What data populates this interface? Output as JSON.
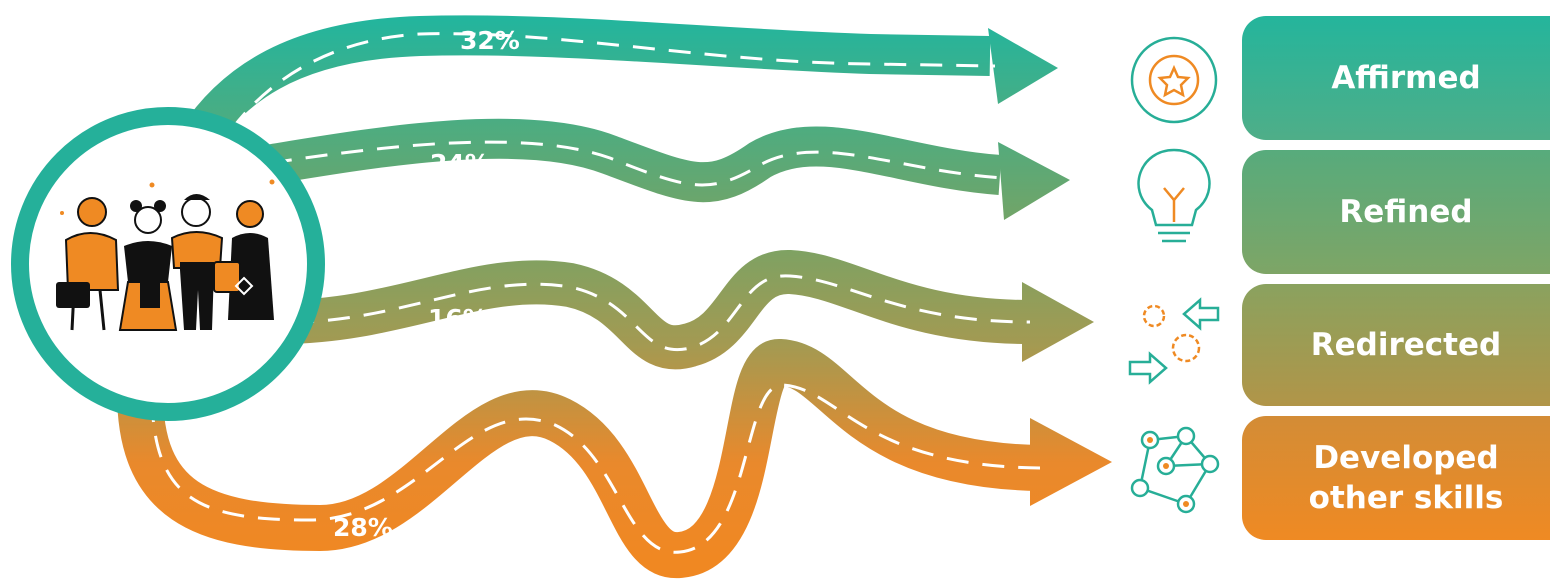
{
  "outcomes": [
    {
      "label": "Affirmed",
      "percent": "32%",
      "icon": "star-medal-icon",
      "color": "#2bb399"
    },
    {
      "label": "Refined",
      "percent": "24%",
      "icon": "lightbulb-icon",
      "color": "#6ea56a"
    },
    {
      "label": "Redirected",
      "percent": "16%",
      "icon": "gears-arrows-icon",
      "color": "#a79a4e"
    },
    {
      "label": "Developed\nother skills",
      "percent": "28%",
      "icon": "network-nodes-icon",
      "color": "#e98b2c"
    }
  ],
  "colors": {
    "teal": "#2bb399",
    "orange": "#ef8a23",
    "dash": "#ffffff"
  },
  "group_icon": "group-of-people-illustration"
}
